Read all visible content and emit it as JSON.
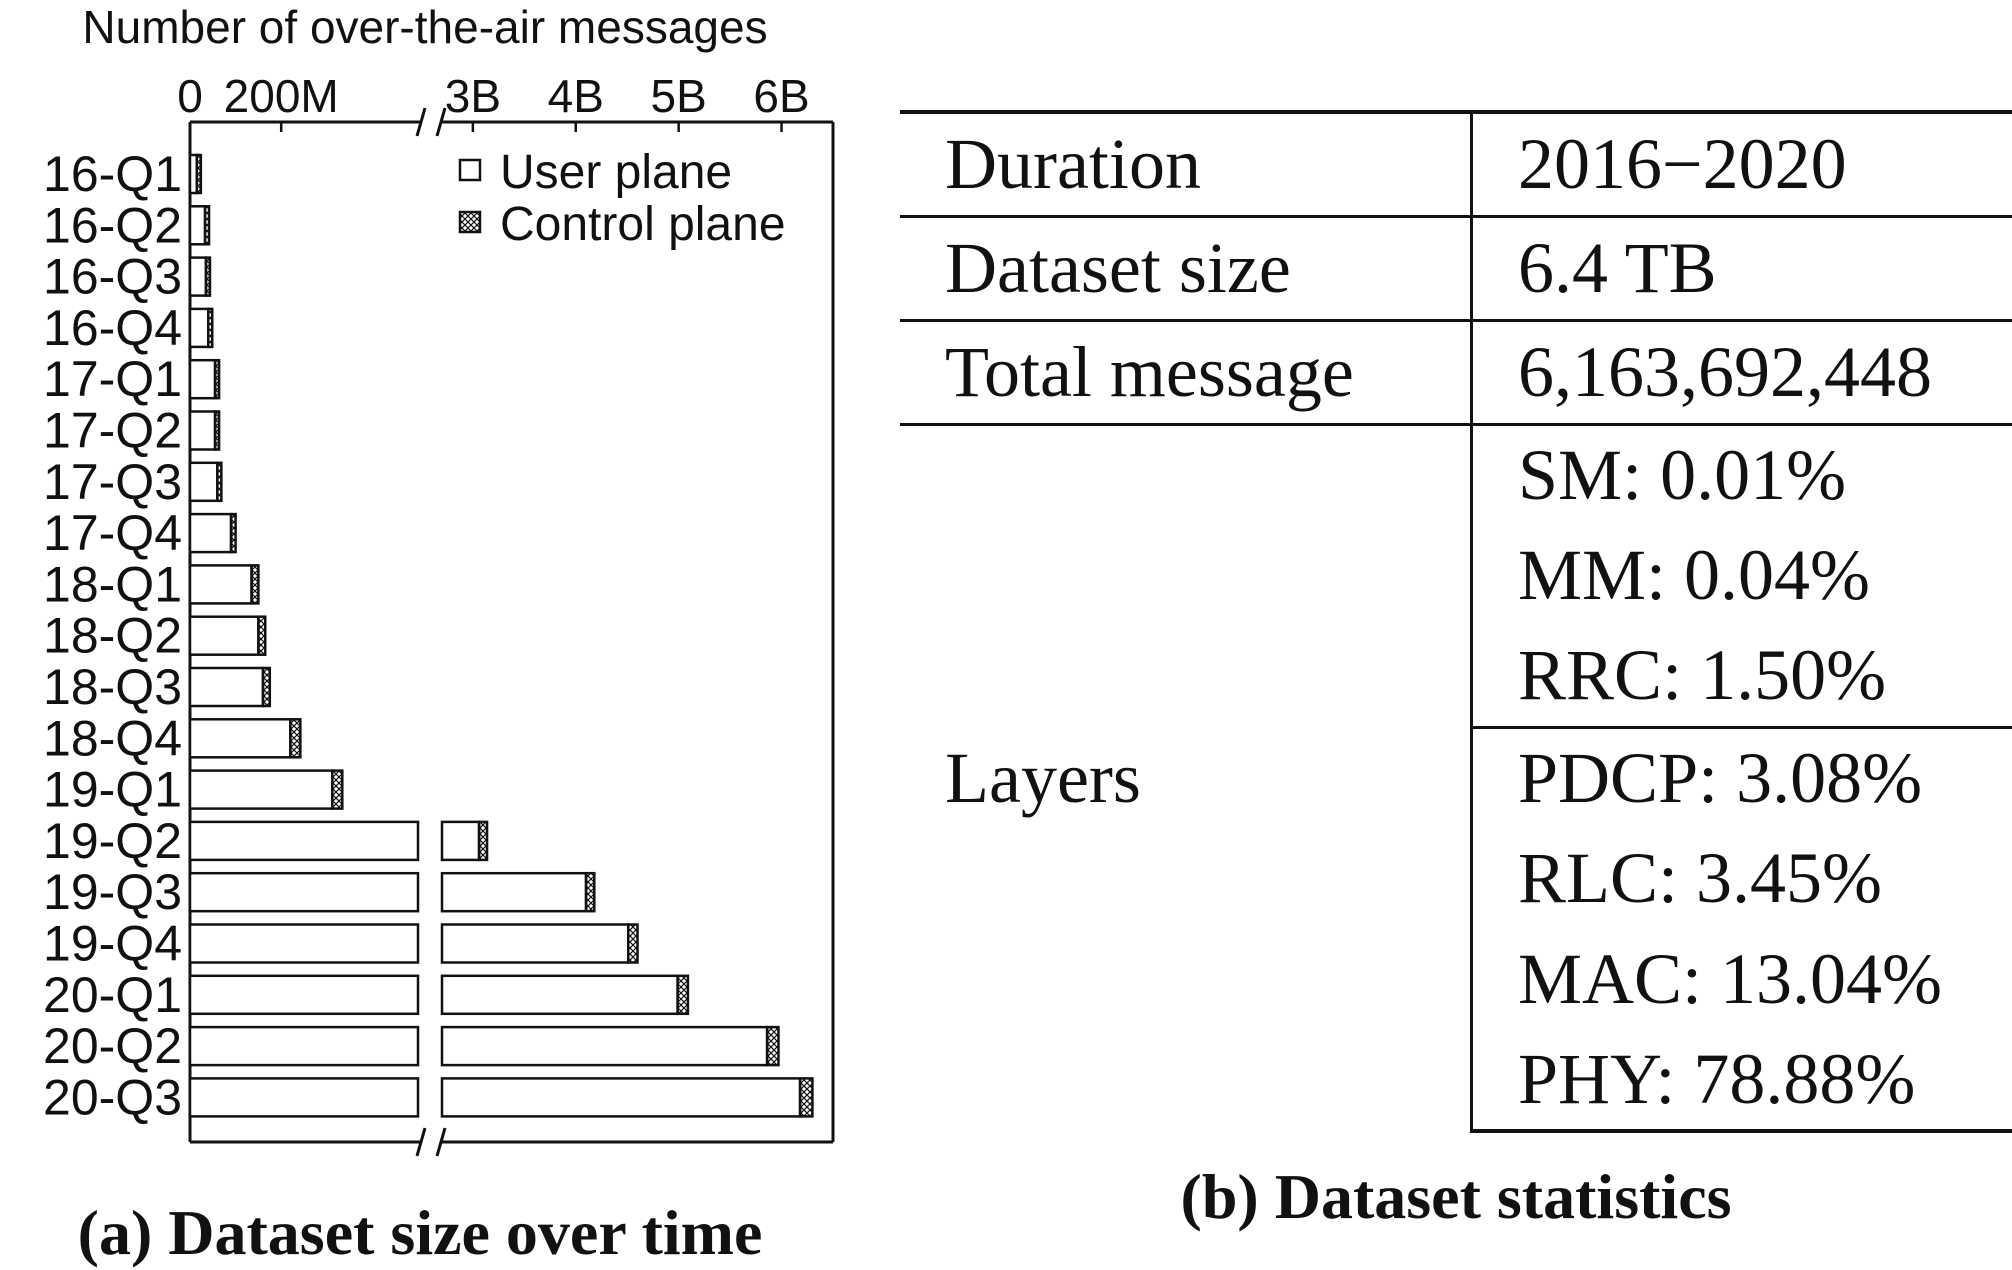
{
  "chart_data": {
    "type": "bar",
    "orientation": "horizontal",
    "stacked": true,
    "broken_axis": true,
    "title": "Number of over-the-air messages",
    "caption": "(a) Dataset size over time",
    "x_ticks": [
      "0",
      "200M",
      "3B",
      "4B",
      "5B",
      "6B"
    ],
    "x_segments": [
      {
        "range": [
          0,
          500000000
        ]
      },
      {
        "range": [
          2700000000,
          6500000000
        ]
      }
    ],
    "legend": {
      "position": "top-right",
      "entries": [
        "User plane",
        "Control plane"
      ]
    },
    "categories": [
      "16-Q1",
      "16-Q2",
      "16-Q3",
      "16-Q4",
      "17-Q1",
      "17-Q2",
      "17-Q3",
      "17-Q4",
      "18-Q1",
      "18-Q2",
      "18-Q3",
      "18-Q4",
      "19-Q1",
      "19-Q2",
      "19-Q3",
      "19-Q4",
      "20-Q1",
      "20-Q2",
      "20-Q3"
    ],
    "series": [
      {
        "name": "User plane",
        "values": [
          15000000,
          33000000,
          35000000,
          40000000,
          55000000,
          55000000,
          60000000,
          90000000,
          135000000,
          150000000,
          160000000,
          220000000,
          312000000,
          3060000000,
          4100000000,
          4510000000,
          4990000000,
          5860000000,
          6180000000
        ]
      },
      {
        "name": "Control plane",
        "values": [
          1000000,
          1500000,
          1500000,
          2000000,
          4000000,
          4000000,
          5000000,
          10000000,
          15000000,
          15000000,
          15000000,
          22000000,
          22000000,
          60000000,
          80000000,
          90000000,
          100000000,
          110000000,
          120000000
        ]
      }
    ]
  },
  "stats": {
    "caption": "(b) Dataset statistics",
    "rows": [
      {
        "key": "Duration",
        "value": "2016−2020"
      },
      {
        "key": "Dataset size",
        "value": "6.4 TB"
      },
      {
        "key": "Total message",
        "value": "6,163,692,448"
      }
    ],
    "layers_key": "Layers",
    "layers_group_1": [
      "SM: 0.01%",
      "MM: 0.04%",
      "RRC: 1.50%"
    ],
    "layers_group_2": [
      "PDCP: 3.08%",
      "RLC: 3.45%",
      "MAC: 13.04%",
      "PHY: 78.88%"
    ]
  }
}
